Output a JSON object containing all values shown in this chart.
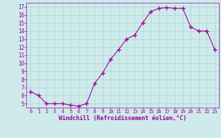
{
  "x": [
    0,
    1,
    2,
    3,
    4,
    5,
    6,
    7,
    8,
    9,
    10,
    11,
    12,
    13,
    14,
    15,
    16,
    17,
    18,
    19,
    20,
    21,
    22,
    23
  ],
  "y": [
    6.5,
    6.0,
    5.0,
    5.0,
    5.0,
    4.8,
    4.7,
    5.0,
    7.5,
    8.8,
    10.5,
    11.7,
    13.0,
    13.5,
    15.0,
    16.4,
    16.8,
    16.9,
    16.8,
    16.8,
    14.5,
    14.0,
    14.0,
    11.7
  ],
  "line_color": "#990099",
  "marker": "+",
  "marker_size": 4,
  "bg_color": "#ceeaea",
  "grid_color": "#aad4d4",
  "xlabel": "Windchill (Refroidissement éolien,°C)",
  "xlabel_color": "#990099",
  "tick_color": "#990099",
  "ylim": [
    4.5,
    17.5
  ],
  "xlim": [
    -0.5,
    23.5
  ],
  "yticks": [
    5,
    6,
    7,
    8,
    9,
    10,
    11,
    12,
    13,
    14,
    15,
    16,
    17
  ],
  "xticks": [
    0,
    1,
    2,
    3,
    4,
    5,
    6,
    7,
    8,
    9,
    10,
    11,
    12,
    13,
    14,
    15,
    16,
    17,
    18,
    19,
    20,
    21,
    22,
    23
  ],
  "figsize": [
    3.2,
    2.0
  ],
  "dpi": 100
}
